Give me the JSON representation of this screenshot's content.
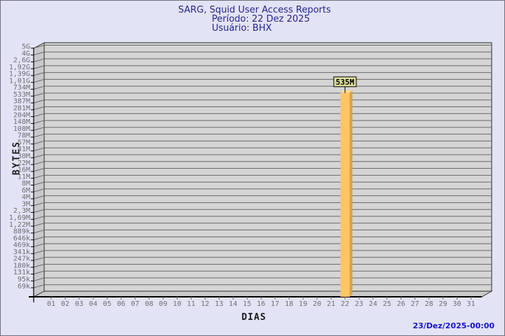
{
  "header": {
    "title": "SARG, Squid User Access Reports",
    "period": "Período: 22 Dez 2025",
    "user": "Usuário: BHX"
  },
  "footer": {
    "timestamp": "23/Dez/2025-00:00"
  },
  "chart_data": {
    "type": "bar",
    "title": "SARG, Squid User Access Reports",
    "subtitle": [
      "Período: 22 Dez 2025",
      "Usuário: BHX"
    ],
    "xlabel": "DIAS",
    "ylabel": "BYTES",
    "y_scale": "log",
    "grid": "horizontal",
    "legend": null,
    "categories": [
      "01",
      "02",
      "03",
      "04",
      "05",
      "06",
      "07",
      "08",
      "09",
      "10",
      "11",
      "12",
      "13",
      "14",
      "15",
      "16",
      "17",
      "18",
      "19",
      "20",
      "21",
      "22",
      "23",
      "24",
      "25",
      "26",
      "27",
      "28",
      "29",
      "30",
      "31"
    ],
    "values": [
      0,
      0,
      0,
      0,
      0,
      0,
      0,
      0,
      0,
      0,
      0,
      0,
      0,
      0,
      0,
      0,
      0,
      0,
      0,
      0,
      0,
      535000000,
      0,
      0,
      0,
      0,
      0,
      0,
      0,
      0,
      0
    ],
    "bar_value_labels": {
      "22": "535M"
    },
    "y_tick_labels": [
      "5G",
      "4G",
      "2,6G",
      "1,92G",
      "1,39G",
      "1,01G",
      "734M",
      "533M",
      "387M",
      "281M",
      "204M",
      "148M",
      "108M",
      "78M",
      "57M",
      "41M",
      "30M",
      "22M",
      "16M",
      "11M",
      "8M",
      "6M",
      "4M",
      "3M",
      "2,3M",
      "1,69M",
      "1,22M",
      "889k",
      "646k",
      "469k",
      "341k",
      "247k",
      "180k",
      "131k",
      "95k",
      "69k"
    ]
  },
  "colors": {
    "background": "#e3e3f6",
    "border": "#70707a",
    "plot_bg": "#d5d5d5",
    "plot_side": "#c9c9c9",
    "plot_edge": "#2a2a2a",
    "gridline": "#686868",
    "axis_line": "#000000",
    "title_text": "#24248e",
    "tick_text": "#6e6e6e",
    "axis_text": "#1a1a1a",
    "timestamp_text": "#1414cc",
    "bar_front": "#fdc565",
    "bar_side": "#d9a047",
    "bar_top": "#ffd98f",
    "annotation_bg": "#dede9c",
    "annotation_border": "#000000",
    "annotation_text": "#000000"
  }
}
